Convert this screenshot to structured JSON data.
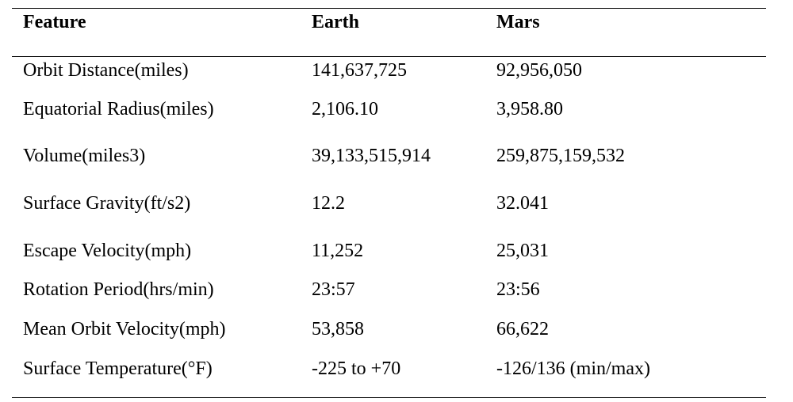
{
  "table": {
    "headers": [
      "Feature",
      "Earth",
      "Mars"
    ],
    "rows": [
      [
        "Orbit Distance(miles)",
        "141,637,725",
        "92,956,050"
      ],
      [
        "Equatorial Radius(miles)",
        "2,106.10",
        "3,958.80"
      ],
      [
        "Volume(miles3)",
        "39,133,515,914",
        "259,875,159,532"
      ],
      [
        "Surface Gravity(ft/s2)",
        "12.2",
        "32.041"
      ],
      [
        "Escape Velocity(mph)",
        "11,252",
        "25,031"
      ],
      [
        "Rotation Period(hrs/min)",
        "23:57",
        "23:56"
      ],
      [
        "Mean Orbit Velocity(mph)",
        "53,858",
        "66,622"
      ],
      [
        "Surface Temperature(°F)",
        "-225 to +70",
        "-126/136 (min/max)"
      ]
    ]
  }
}
